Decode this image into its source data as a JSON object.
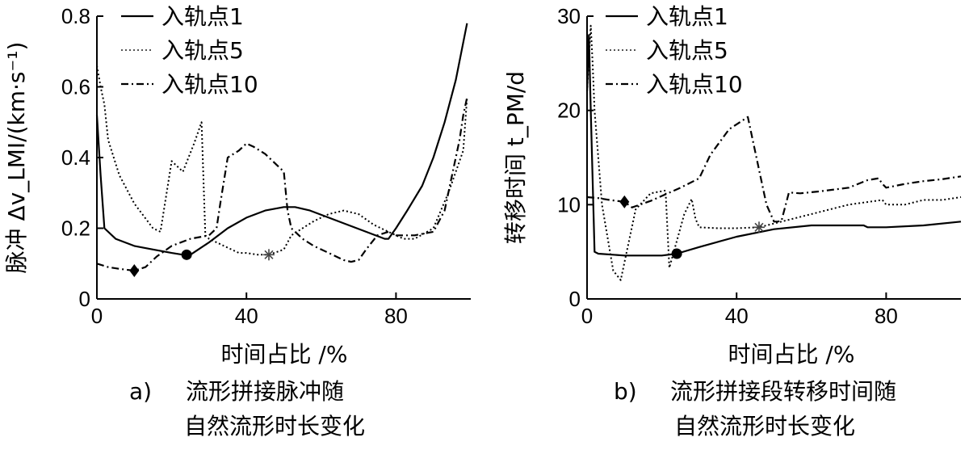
{
  "chart_data": [
    {
      "type": "line",
      "panel": "a)",
      "caption_line1": "流形拼接脉冲随",
      "caption_line2": "自然流形时长变化",
      "xlabel": "时间占比 /%",
      "ylabel": "脉冲 Δv_LMI/(km·s⁻¹)",
      "xlim": [
        0,
        100
      ],
      "ylim": [
        0,
        0.8
      ],
      "xticks": [
        0,
        40,
        80
      ],
      "yticks": [
        0,
        0.2,
        0.4,
        0.6,
        0.8
      ],
      "ytick_labels": [
        "0",
        "0.2",
        "0.4",
        "0.6",
        "0.8"
      ],
      "xtick_labels": [
        "0",
        "40",
        "80"
      ],
      "legend": [
        "入轨点1",
        "入轨点5",
        "入轨点10"
      ],
      "series": [
        {
          "name": "入轨点1",
          "style": "solid",
          "x": [
            0,
            1,
            2,
            5,
            10,
            15,
            20,
            23,
            25,
            30,
            35,
            40,
            45,
            50,
            53,
            57,
            62,
            67,
            72,
            77,
            78,
            80,
            83,
            87,
            90,
            93,
            96,
            99
          ],
          "y": [
            0.52,
            0.35,
            0.2,
            0.17,
            0.15,
            0.14,
            0.13,
            0.125,
            0.125,
            0.16,
            0.2,
            0.23,
            0.25,
            0.26,
            0.26,
            0.25,
            0.23,
            0.21,
            0.19,
            0.17,
            0.17,
            0.2,
            0.25,
            0.32,
            0.4,
            0.5,
            0.62,
            0.78
          ]
        },
        {
          "name": "入轨点5",
          "style": "dotted",
          "x": [
            0,
            1,
            2,
            3,
            6,
            10,
            15,
            17,
            20,
            23,
            26,
            28,
            29,
            30,
            32,
            34,
            36,
            38,
            40,
            43,
            46,
            50,
            52,
            55,
            58,
            62,
            66,
            70,
            74,
            78,
            80,
            82,
            85,
            90,
            92,
            94,
            96,
            98,
            99
          ],
          "y": [
            0.66,
            0.6,
            0.55,
            0.45,
            0.35,
            0.27,
            0.2,
            0.19,
            0.39,
            0.36,
            0.44,
            0.5,
            0.18,
            0.17,
            0.16,
            0.15,
            0.14,
            0.13,
            0.13,
            0.125,
            0.125,
            0.14,
            0.18,
            0.2,
            0.22,
            0.24,
            0.25,
            0.24,
            0.21,
            0.19,
            0.18,
            0.17,
            0.17,
            0.2,
            0.25,
            0.3,
            0.36,
            0.42,
            0.57
          ]
        },
        {
          "name": "入轨点10",
          "style": "dashdot",
          "x": [
            0,
            3,
            6,
            10,
            13,
            16,
            20,
            25,
            30,
            32,
            33,
            35,
            38,
            40,
            42,
            45,
            50,
            51,
            52,
            55,
            58,
            62,
            66,
            68,
            70,
            72,
            75,
            78,
            80,
            85,
            90,
            93,
            95,
            97,
            98,
            99
          ],
          "y": [
            0.1,
            0.09,
            0.085,
            0.08,
            0.09,
            0.12,
            0.15,
            0.17,
            0.18,
            0.2,
            0.27,
            0.4,
            0.42,
            0.44,
            0.43,
            0.41,
            0.36,
            0.25,
            0.2,
            0.17,
            0.15,
            0.13,
            0.11,
            0.105,
            0.11,
            0.14,
            0.18,
            0.19,
            0.18,
            0.18,
            0.19,
            0.25,
            0.35,
            0.45,
            0.52,
            0.57
          ]
        }
      ],
      "markers": [
        {
          "shape": "diamond",
          "x": 10,
          "y": 0.08
        },
        {
          "shape": "circle",
          "x": 24,
          "y": 0.125
        },
        {
          "shape": "asterisk",
          "x": 46,
          "y": 0.125
        }
      ]
    },
    {
      "type": "line",
      "panel": "b)",
      "caption_line1": "流形拼接段转移时间随",
      "caption_line2": "自然流形时长变化",
      "xlabel": "时间占比 /%",
      "ylabel": "转移时间 t_PM/d",
      "xlim": [
        0,
        100
      ],
      "ylim": [
        0,
        30
      ],
      "xticks": [
        0,
        40,
        80
      ],
      "yticks": [
        0,
        10,
        20,
        30
      ],
      "ytick_labels": [
        "0",
        "10",
        "20",
        "30"
      ],
      "xtick_labels": [
        "0",
        "40",
        "80"
      ],
      "legend": [
        "入轨点1",
        "入轨点5",
        "入轨点10"
      ],
      "series": [
        {
          "name": "入轨点1",
          "style": "solid",
          "x": [
            0,
            0.5,
            1,
            2,
            3,
            10,
            20,
            24,
            30,
            40,
            50,
            60,
            70,
            74,
            75,
            80,
            90,
            100
          ],
          "y": [
            22,
            28,
            20,
            5,
            4.8,
            4.6,
            4.6,
            4.8,
            5.5,
            6.6,
            7.4,
            7.8,
            7.8,
            7.8,
            7.6,
            7.6,
            7.8,
            8.2
          ]
        },
        {
          "name": "入轨点5",
          "style": "dotted",
          "x": [
            0,
            1,
            1.5,
            2,
            4,
            7,
            9,
            13,
            17,
            21,
            22,
            26,
            28,
            29,
            30,
            35,
            40,
            46,
            50,
            55,
            60,
            70,
            79,
            80,
            85,
            90,
            95,
            100
          ],
          "y": [
            22,
            29,
            25,
            20,
            10,
            3,
            2,
            9.5,
            11.2,
            11.5,
            3.3,
            9,
            10.6,
            8.5,
            7.6,
            7.5,
            7.5,
            7.6,
            8,
            8.5,
            9,
            10,
            10.5,
            10,
            10,
            10.5,
            10.5,
            10.8
          ]
        },
        {
          "name": "入轨点10",
          "style": "dashdot",
          "x": [
            0,
            3,
            6,
            10,
            12,
            17,
            25,
            30,
            33,
            38,
            43,
            48,
            50,
            51,
            52,
            54,
            57,
            62,
            70,
            75,
            78,
            79,
            80,
            85,
            90,
            95,
            100
          ],
          "y": [
            10.8,
            10.7,
            10.5,
            10.3,
            9.7,
            10.4,
            11.8,
            12.8,
            15.3,
            18,
            19.3,
            10,
            8.2,
            8.2,
            8.3,
            11.3,
            11.2,
            11.4,
            11.8,
            12.6,
            12.8,
            12.2,
            11.8,
            12.2,
            12.5,
            12.7,
            13
          ]
        }
      ],
      "markers": [
        {
          "shape": "diamond",
          "x": 10,
          "y": 10.3
        },
        {
          "shape": "circle",
          "x": 24,
          "y": 4.8
        },
        {
          "shape": "asterisk",
          "x": 46,
          "y": 7.6
        }
      ]
    }
  ]
}
